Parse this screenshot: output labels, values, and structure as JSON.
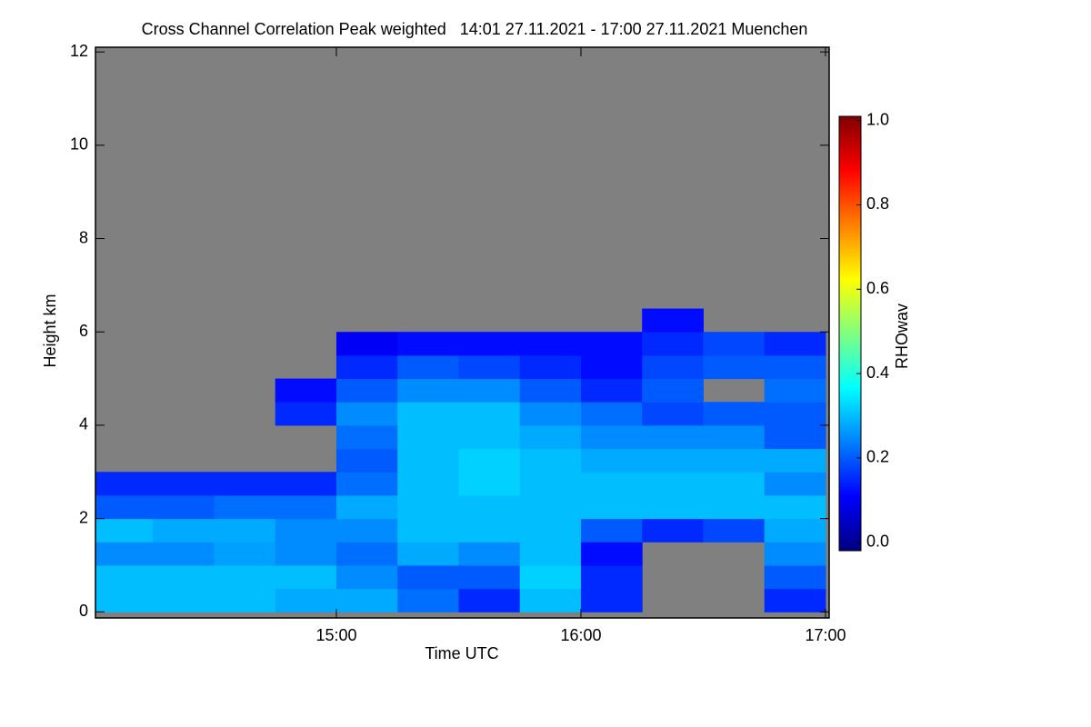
{
  "chart_data": {
    "type": "heatmap",
    "title": "Cross Channel Correlation Peak weighted   14:01 27.11.2021 - 17:00 27.11.2021 Muenchen",
    "xlabel": "Time UTC",
    "ylabel": "Height km",
    "colorbar_label": "RHOwav",
    "xlim": [
      14.015,
      17.015
    ],
    "xticks": [
      {
        "value": 15,
        "label": "15:00"
      },
      {
        "value": 16,
        "label": "16:00"
      },
      {
        "value": 17,
        "label": "17:00"
      }
    ],
    "ylim": [
      -0.13,
      12.1
    ],
    "yticks": [
      0,
      2,
      4,
      6,
      8,
      10,
      12
    ],
    "clim": [
      -0.02,
      1.01
    ],
    "cticks": [
      {
        "value": 0,
        "label": "0.0"
      },
      0.2,
      0.4,
      0.6,
      0.8,
      {
        "value": 1,
        "label": "1.0"
      }
    ],
    "colormap": [
      "#000080",
      "#0000ff",
      "#0080ff",
      "#00ffff",
      "#80ff80",
      "#ffff00",
      "#ff8000",
      "#ff0000",
      "#800000"
    ],
    "background": "#808080",
    "xbins": [
      14,
      14.25,
      14.5,
      14.75,
      15,
      15.25,
      15.5,
      15.75,
      16,
      16.25,
      16.5,
      16.75,
      17
    ],
    "ybins": [
      0,
      0.5,
      1,
      1.5,
      2,
      2.5,
      3,
      3.5,
      4,
      4.5,
      5,
      5.5,
      6,
      6.5
    ],
    "z": [
      [
        0.3,
        0.3,
        0.3,
        0.28,
        0.28,
        0.22,
        0.15,
        0.3,
        0.15,
        null,
        null,
        0.15
      ],
      [
        0.3,
        0.3,
        0.3,
        0.3,
        0.25,
        0.2,
        0.2,
        0.32,
        0.15,
        null,
        null,
        0.2
      ],
      [
        0.25,
        0.25,
        0.27,
        0.25,
        0.22,
        0.28,
        0.25,
        0.3,
        0.12,
        null,
        null,
        0.25
      ],
      [
        0.3,
        0.28,
        0.28,
        0.25,
        0.25,
        0.3,
        0.3,
        0.3,
        0.2,
        0.15,
        0.18,
        0.28
      ],
      [
        0.2,
        0.2,
        0.22,
        0.22,
        0.28,
        0.3,
        0.3,
        0.3,
        0.3,
        0.3,
        0.3,
        0.3
      ],
      [
        0.15,
        0.15,
        0.15,
        0.15,
        0.22,
        0.3,
        0.32,
        0.3,
        0.3,
        0.3,
        0.3,
        0.25
      ],
      [
        null,
        null,
        null,
        null,
        0.2,
        0.3,
        0.32,
        0.3,
        0.28,
        0.28,
        0.28,
        0.28
      ],
      [
        null,
        null,
        null,
        null,
        0.22,
        0.3,
        0.3,
        0.28,
        0.25,
        0.25,
        0.25,
        0.2
      ],
      [
        null,
        null,
        null,
        0.15,
        0.25,
        0.3,
        0.3,
        0.25,
        0.22,
        0.18,
        0.2,
        0.2
      ],
      [
        null,
        null,
        null,
        0.12,
        0.2,
        0.25,
        0.25,
        0.2,
        0.15,
        0.2,
        null,
        0.22
      ],
      [
        null,
        null,
        null,
        null,
        0.15,
        0.2,
        0.18,
        0.15,
        0.12,
        0.18,
        0.2,
        0.2
      ],
      [
        null,
        null,
        null,
        null,
        0.1,
        0.12,
        0.12,
        0.12,
        0.12,
        0.15,
        0.18,
        0.15
      ],
      [
        null,
        null,
        null,
        null,
        null,
        null,
        null,
        null,
        null,
        0.12,
        null,
        null
      ]
    ]
  }
}
